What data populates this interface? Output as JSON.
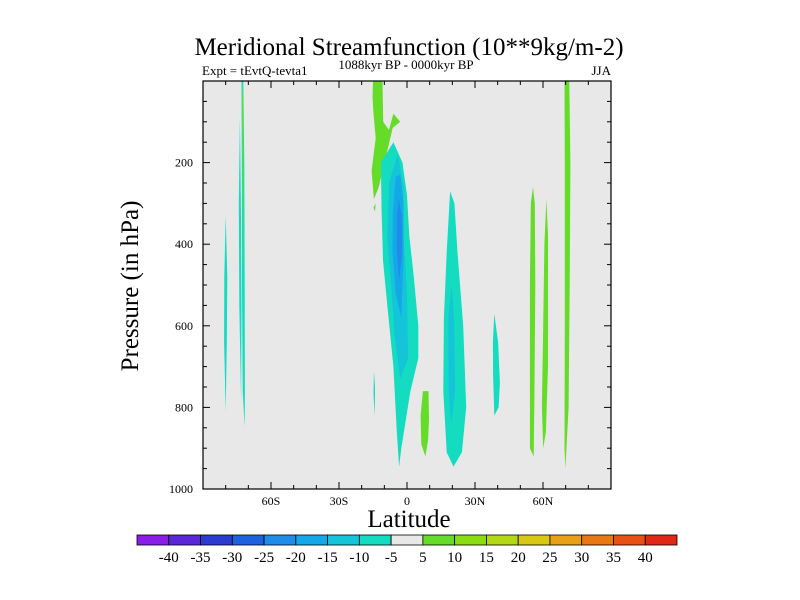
{
  "chart_data": {
    "type": "heatmap",
    "title": "Meridional Streamfunction (10**9kg/m-2)",
    "subtitle_left": "Expt = tEvtQ-tevta1",
    "subtitle_center": "1088kyr BP - 0000kyr BP",
    "subtitle_right": "JJA",
    "xlabel": "Latitude",
    "ylabel": "Pressure (in hPa)",
    "x_ticks": [
      -60,
      -30,
      0,
      30,
      60
    ],
    "x_tick_labels": [
      "60S",
      "30S",
      "0",
      "30N",
      "60N"
    ],
    "y_ticks": [
      200,
      400,
      600,
      800,
      1000
    ],
    "y_tick_labels": [
      "200",
      "400",
      "600",
      "800",
      "1000"
    ],
    "xlim": [
      -90,
      90
    ],
    "ylim": [
      1000,
      0
    ],
    "colorbar": {
      "labels": [
        "-40",
        "-35",
        "-30",
        "-25",
        "-20",
        "-15",
        "-10",
        "-5",
        "5",
        "10",
        "15",
        "20",
        "25",
        "30",
        "35",
        "40"
      ],
      "levels": [
        -40,
        -35,
        -30,
        -25,
        -20,
        -15,
        -10,
        -5,
        5,
        10,
        15,
        20,
        25,
        30,
        35,
        40
      ],
      "colors": [
        "#8a1ee8",
        "#5a28d8",
        "#2c3cd0",
        "#1e60e0",
        "#1e8ce8",
        "#14a8e8",
        "#14c4d8",
        "#14dcc0",
        "#e8e8e8",
        "#64dc28",
        "#8cdc14",
        "#b4d814",
        "#d8c814",
        "#e8a014",
        "#e87814",
        "#e85014",
        "#e02814"
      ]
    },
    "background_color": "#e8e8e8",
    "regions": [
      {
        "name": "polar-stripe-1",
        "color": "#14dcc0",
        "points": [
          [
            -80,
            330
          ],
          [
            -79.3,
            480
          ],
          [
            -79.5,
            640
          ],
          [
            -80,
            810
          ],
          [
            -80.7,
            640
          ],
          [
            -80.6,
            480
          ]
        ]
      },
      {
        "name": "polar-stripe-2",
        "color": "#14dcc0",
        "points": [
          [
            -73.7,
            90
          ],
          [
            -73.3,
            300
          ],
          [
            -73,
            550
          ],
          [
            -73.2,
            785
          ],
          [
            -74,
            550
          ],
          [
            -74.2,
            300
          ]
        ]
      },
      {
        "name": "polar-stripe-3",
        "color": "#14dcc0",
        "points": [
          [
            -72.2,
            0
          ],
          [
            -71.8,
            200
          ],
          [
            -71.6,
            500
          ],
          [
            -71.5,
            760
          ],
          [
            -71.6,
            850
          ],
          [
            -72.5,
            760
          ],
          [
            -72.8,
            500
          ],
          [
            -72.9,
            200
          ],
          [
            -73,
            0
          ]
        ]
      },
      {
        "name": "polar-green-strip",
        "color": "#64dc28",
        "points": [
          [
            -72.7,
            0
          ],
          [
            -72.3,
            40
          ],
          [
            -72.2,
            200
          ],
          [
            -72.5,
            500
          ],
          [
            -72.7,
            200
          ],
          [
            -72.9,
            40
          ]
        ]
      },
      {
        "name": "tropical-green-upper",
        "color": "#64dc28",
        "points": [
          [
            -15,
            0
          ],
          [
            -10.8,
            0
          ],
          [
            -10.5,
            100
          ],
          [
            -8,
            120
          ],
          [
            -6,
            80
          ],
          [
            -3,
            100
          ],
          [
            -6.3,
            115
          ],
          [
            -12.5,
            260
          ],
          [
            -14.6,
            290
          ],
          [
            -15.6,
            220
          ],
          [
            -13.8,
            140
          ],
          [
            -14.8,
            80
          ],
          [
            -15.2,
            40
          ]
        ]
      },
      {
        "name": "tropical-green-tip",
        "color": "#64dc28",
        "points": [
          [
            -14.8,
            310
          ],
          [
            -13.8,
            300
          ],
          [
            -14.1,
            320
          ]
        ]
      },
      {
        "name": "tropical-cell-outer",
        "color": "#14dcc0",
        "points": [
          [
            -11.5,
            200
          ],
          [
            -6,
            150
          ],
          [
            -2,
            200
          ],
          [
            0,
            280
          ],
          [
            1,
            380
          ],
          [
            3,
            480
          ],
          [
            5,
            600
          ],
          [
            5,
            680
          ],
          [
            1.5,
            760
          ],
          [
            -2.5,
            900
          ],
          [
            -3.5,
            945
          ],
          [
            -4.5,
            860
          ],
          [
            -6,
            700
          ],
          [
            -8.5,
            560
          ],
          [
            -10.6,
            440
          ],
          [
            -11.2,
            320
          ]
        ]
      },
      {
        "name": "tropical-cell-10",
        "color": "#14c4d8",
        "points": [
          [
            -8,
            250
          ],
          [
            -4,
            180
          ],
          [
            -1.5,
            260
          ],
          [
            -1.5,
            380
          ],
          [
            0,
            520
          ],
          [
            0.5,
            680
          ],
          [
            -3,
            730
          ],
          [
            -5.5,
            620
          ],
          [
            -7,
            500
          ],
          [
            -8.7,
            390
          ]
        ]
      },
      {
        "name": "tropical-cell-15",
        "color": "#14a8e8",
        "points": [
          [
            -5,
            235
          ],
          [
            -3,
            230
          ],
          [
            -1.6,
            300
          ],
          [
            -1.5,
            430
          ],
          [
            -2.5,
            580
          ],
          [
            -5,
            520
          ],
          [
            -6.4,
            420
          ],
          [
            -6.2,
            320
          ]
        ]
      },
      {
        "name": "tropical-cell-20",
        "color": "#1e8ce8",
        "points": [
          [
            -3.7,
            290
          ],
          [
            -2.3,
            330
          ],
          [
            -2.2,
            420
          ],
          [
            -3.5,
            490
          ],
          [
            -4.6,
            410
          ],
          [
            -4.4,
            330
          ]
        ]
      },
      {
        "name": "tropical-small-strip",
        "color": "#14dcc0",
        "points": [
          [
            -14.6,
            710
          ],
          [
            -14.1,
            750
          ],
          [
            -14.2,
            820
          ],
          [
            -14.8,
            770
          ]
        ]
      },
      {
        "name": "tropical-green-lower",
        "color": "#64dc28",
        "points": [
          [
            7,
            760
          ],
          [
            9.5,
            760
          ],
          [
            9.7,
            830
          ],
          [
            9.3,
            880
          ],
          [
            8.1,
            920
          ],
          [
            6.3,
            890
          ],
          [
            6,
            820
          ]
        ]
      },
      {
        "name": "subtropical-cell-outer",
        "color": "#14dcc0",
        "points": [
          [
            19,
            270
          ],
          [
            20.9,
            300
          ],
          [
            22.3,
            420
          ],
          [
            24.8,
            600
          ],
          [
            26.1,
            800
          ],
          [
            24.2,
            910
          ],
          [
            20.5,
            945
          ],
          [
            17.5,
            910
          ],
          [
            16,
            760
          ],
          [
            16.3,
            580
          ],
          [
            17.5,
            420
          ]
        ]
      },
      {
        "name": "subtropical-cell-10",
        "color": "#14c4d8",
        "points": [
          [
            19.7,
            500
          ],
          [
            20.8,
            580
          ],
          [
            21.2,
            760
          ],
          [
            19.5,
            840
          ],
          [
            18.4,
            760
          ],
          [
            18.2,
            580
          ]
        ]
      },
      {
        "name": "mid-lat-small-cell",
        "color": "#14dcc0",
        "points": [
          [
            38.5,
            570
          ],
          [
            40.2,
            640
          ],
          [
            41,
            740
          ],
          [
            40.4,
            800
          ],
          [
            38.5,
            820
          ],
          [
            38,
            720
          ],
          [
            37.9,
            640
          ]
        ]
      },
      {
        "name": "mid-lat-green-1",
        "color": "#64dc28",
        "points": [
          [
            55.6,
            260
          ],
          [
            54.6,
            300
          ],
          [
            54.2,
            500
          ],
          [
            54.2,
            760
          ],
          [
            54.2,
            900
          ],
          [
            55.9,
            920
          ],
          [
            56.2,
            780
          ],
          [
            56.6,
            500
          ],
          [
            56.4,
            300
          ]
        ]
      },
      {
        "name": "mid-lat-green-2",
        "color": "#64dc28",
        "points": [
          [
            61.5,
            290
          ],
          [
            60.6,
            400
          ],
          [
            60.1,
            600
          ],
          [
            59.5,
            800
          ],
          [
            60.1,
            900
          ],
          [
            61.3,
            860
          ],
          [
            62.2,
            700
          ],
          [
            62.2,
            500
          ],
          [
            62.2,
            380
          ]
        ]
      },
      {
        "name": "polar-green-wide",
        "color": "#64dc28",
        "points": [
          [
            71.6,
            0
          ],
          [
            69.5,
            0
          ],
          [
            69.6,
            200
          ],
          [
            69.6,
            600
          ],
          [
            69.5,
            900
          ],
          [
            69.9,
            950
          ],
          [
            71.3,
            800
          ],
          [
            71.8,
            500
          ],
          [
            72.1,
            200
          ]
        ]
      }
    ]
  }
}
